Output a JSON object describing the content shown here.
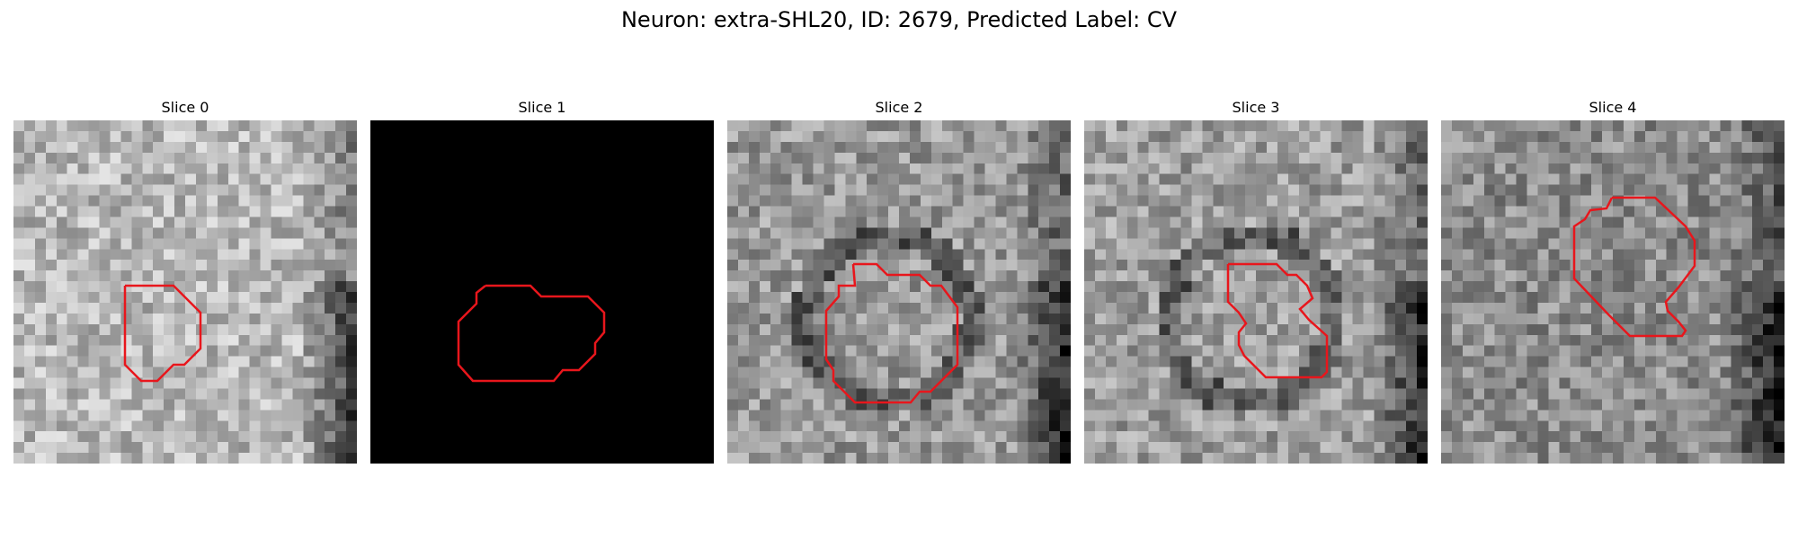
{
  "figure": {
    "title": "Neuron: extra-SHL20, ID: 2679, Predicted Label: CV",
    "contour_color": "#e8161c"
  },
  "slices": [
    {
      "title": "Slice 0",
      "content": "grayscale-slice",
      "mean_brightness": 0.72
    },
    {
      "title": "Slice 1",
      "content": "black-slice",
      "mean_brightness": 0.0
    },
    {
      "title": "Slice 2",
      "content": "grayscale-slice",
      "mean_brightness": 0.6
    },
    {
      "title": "Slice 3",
      "content": "grayscale-slice",
      "mean_brightness": 0.62
    },
    {
      "title": "Slice 4",
      "content": "grayscale-slice",
      "mean_brightness": 0.55
    }
  ]
}
